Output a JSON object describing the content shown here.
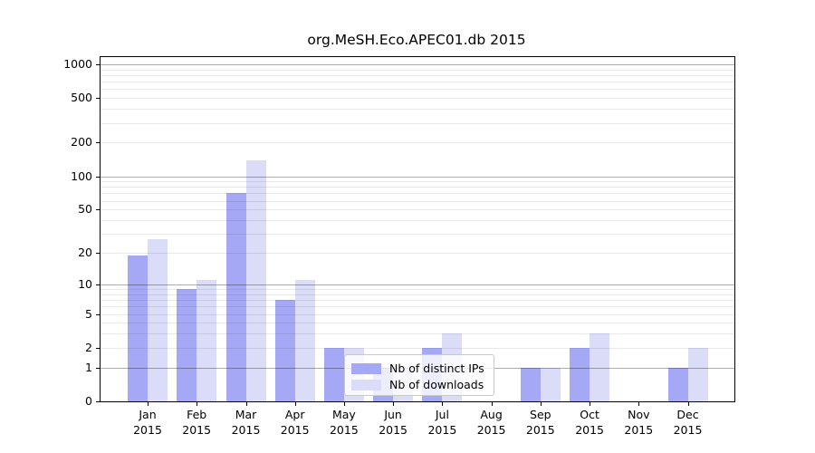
{
  "chart_data": {
    "type": "bar",
    "title": "org.MeSH.Eco.APEC01.db 2015",
    "categories": [
      "Jan",
      "Feb",
      "Mar",
      "Apr",
      "May",
      "Jun",
      "Jul",
      "Aug",
      "Sep",
      "Oct",
      "Nov",
      "Dec"
    ],
    "x_year": "2015",
    "series": [
      {
        "name": "Nb of distinct IPs",
        "color": "#a5a9f5",
        "values": [
          19,
          9,
          70,
          7,
          2,
          1,
          2,
          0,
          1,
          2,
          0,
          1
        ]
      },
      {
        "name": "Nb of downloads",
        "color": "#dadcf8",
        "values": [
          27,
          11,
          140,
          11,
          2,
          1,
          3,
          0,
          1,
          3,
          0,
          2
        ]
      }
    ],
    "xlabel": "",
    "ylabel": "",
    "y_scale": "log1p",
    "ylim": [
      0,
      1200
    ],
    "y_ticks": [
      0,
      1,
      2,
      5,
      10,
      20,
      50,
      100,
      200,
      500,
      1000
    ],
    "y_major_gridlines": [
      1,
      10,
      100,
      1000
    ],
    "y_minor_gridlines": [
      2,
      3,
      4,
      5,
      6,
      7,
      8,
      9,
      20,
      30,
      40,
      50,
      60,
      70,
      80,
      90,
      200,
      300,
      400,
      500,
      600,
      700,
      800,
      900
    ],
    "grid": "on",
    "legend_position": "lower center-left, inside plot",
    "colors": {
      "major_grid": "#b3b3b3",
      "minor_grid": "#e9e9e9",
      "axis": "#000000",
      "legend_border": "#c9c9c9",
      "background": "#ffffff"
    }
  }
}
